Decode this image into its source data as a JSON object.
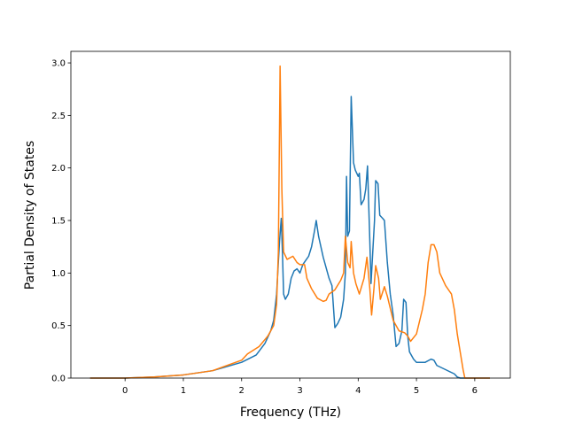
{
  "chart_data": {
    "type": "line",
    "xlabel": "Frequency (THz)",
    "ylabel": "Partial Density of States",
    "xlim": [
      -0.93,
      6.61
    ],
    "ylim": [
      0,
      3.11
    ],
    "xticks": [
      0,
      1,
      2,
      3,
      4,
      5,
      6
    ],
    "yticks": [
      {
        "value": 0,
        "label": "0.0"
      },
      {
        "value": 0.5,
        "label": "0.5"
      },
      {
        "value": 1,
        "label": "1.0"
      },
      {
        "value": 1.5,
        "label": "1.5"
      },
      {
        "value": 2,
        "label": "2.0"
      },
      {
        "value": 2.5,
        "label": "2.5"
      },
      {
        "value": 3,
        "label": "3.0"
      }
    ],
    "grid": false,
    "series": [
      {
        "color": "#1f77b4",
        "x": [
          -0.6,
          0,
          0.5,
          1,
          1.5,
          2,
          2.25,
          2.4,
          2.5,
          2.55,
          2.6,
          2.65,
          2.68,
          2.7,
          2.72,
          2.75,
          2.8,
          2.85,
          2.9,
          2.95,
          3.0,
          3.05,
          3.1,
          3.15,
          3.2,
          3.25,
          3.28,
          3.32,
          3.4,
          3.5,
          3.55,
          3.6,
          3.65,
          3.7,
          3.75,
          3.78,
          3.8,
          3.82,
          3.85,
          3.88,
          3.92,
          3.95,
          4.0,
          4.02,
          4.05,
          4.1,
          4.13,
          4.16,
          4.2,
          4.22,
          4.28,
          4.3,
          4.34,
          4.37,
          4.42,
          4.45,
          4.5,
          4.55,
          4.6,
          4.65,
          4.7,
          4.75,
          4.78,
          4.82,
          4.85,
          4.88,
          4.95,
          5.0,
          5.15,
          5.25,
          5.3,
          5.35,
          5.5,
          5.65,
          5.7,
          5.75,
          6.26
        ],
        "values": [
          0,
          0,
          0.01,
          0.03,
          0.07,
          0.15,
          0.22,
          0.33,
          0.45,
          0.55,
          0.8,
          1.3,
          1.52,
          1.2,
          0.8,
          0.75,
          0.8,
          0.95,
          1.02,
          1.04,
          1.0,
          1.08,
          1.12,
          1.16,
          1.25,
          1.4,
          1.5,
          1.35,
          1.15,
          0.95,
          0.88,
          0.48,
          0.52,
          0.58,
          0.75,
          1.0,
          1.92,
          1.35,
          1.4,
          2.68,
          2.05,
          1.98,
          1.92,
          1.95,
          1.65,
          1.7,
          1.8,
          2.02,
          1.3,
          0.9,
          1.5,
          1.88,
          1.85,
          1.55,
          1.52,
          1.5,
          1.1,
          0.8,
          0.6,
          0.3,
          0.33,
          0.45,
          0.75,
          0.72,
          0.4,
          0.25,
          0.18,
          0.15,
          0.15,
          0.18,
          0.17,
          0.12,
          0.08,
          0.04,
          0.01,
          0,
          0
        ]
      },
      {
        "color": "#ff7f0e",
        "x": [
          -0.6,
          0,
          0.5,
          1,
          1.5,
          2,
          2.1,
          2.3,
          2.45,
          2.55,
          2.6,
          2.63,
          2.66,
          2.69,
          2.72,
          2.78,
          2.88,
          2.95,
          3.0,
          3.08,
          3.12,
          3.2,
          3.3,
          3.4,
          3.45,
          3.5,
          3.6,
          3.7,
          3.75,
          3.78,
          3.82,
          3.86,
          3.88,
          3.92,
          3.96,
          4.02,
          4.1,
          4.15,
          4.2,
          4.23,
          4.27,
          4.3,
          4.35,
          4.38,
          4.45,
          4.5,
          4.6,
          4.7,
          4.8,
          4.85,
          4.9,
          5.0,
          5.1,
          5.15,
          5.2,
          5.25,
          5.3,
          5.35,
          5.4,
          5.5,
          5.6,
          5.65,
          5.7,
          5.75,
          5.8,
          5.83,
          6.26
        ],
        "values": [
          0,
          0,
          0.01,
          0.03,
          0.07,
          0.17,
          0.23,
          0.3,
          0.4,
          0.5,
          0.7,
          1.2,
          2.97,
          1.8,
          1.2,
          1.13,
          1.16,
          1.1,
          1.08,
          1.08,
          0.95,
          0.85,
          0.76,
          0.73,
          0.74,
          0.8,
          0.84,
          0.93,
          1.0,
          1.35,
          1.1,
          1.05,
          1.3,
          1.0,
          0.9,
          0.8,
          0.95,
          1.15,
          0.85,
          0.6,
          0.85,
          1.07,
          0.95,
          0.75,
          0.87,
          0.78,
          0.55,
          0.45,
          0.43,
          0.4,
          0.35,
          0.42,
          0.65,
          0.8,
          1.1,
          1.27,
          1.27,
          1.2,
          1.0,
          0.88,
          0.8,
          0.65,
          0.42,
          0.25,
          0.08,
          0,
          0
        ]
      }
    ]
  }
}
